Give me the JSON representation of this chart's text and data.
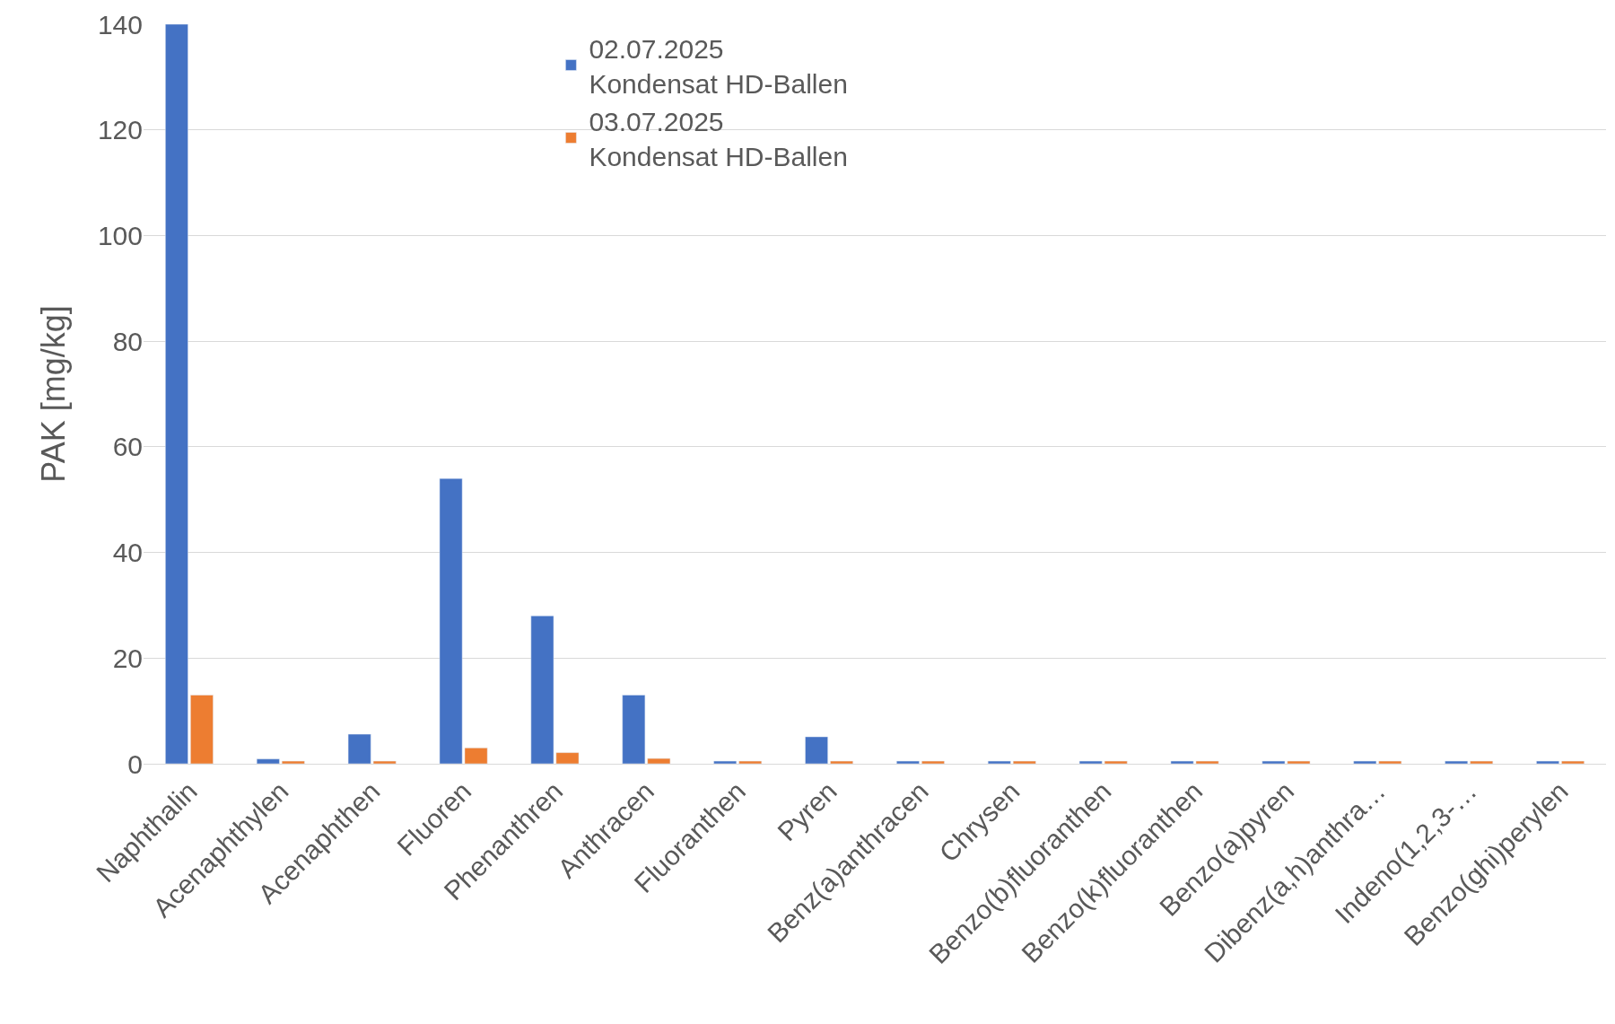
{
  "chart_data": {
    "type": "bar",
    "ylabel": "PAK [mg/kg]",
    "categories": [
      "Naphthalin",
      "Acenaphthylen",
      "Acenaphthen",
      "Fluoren",
      "Phenanthren",
      "Anthracen",
      "Fluoranthen",
      "Pyren",
      "Benz(a)anthracen",
      "Chrysen",
      "Benzo(b)fluoranthen",
      "Benzo(k)fluoranthen",
      "Benzo(a)pyren",
      "Dibenz(a,h)anthra…",
      "Indeno(1,2,3-…",
      "Benzo(ghi)perylen"
    ],
    "series": [
      {
        "name": "02.07.2025\nKondensat HD-Ballen",
        "color": "#4472c4",
        "values": [
          140,
          0.9,
          5.6,
          54,
          28,
          13,
          0.5,
          5.1,
          0.5,
          0.5,
          0.5,
          0.5,
          0.5,
          0.5,
          0.5,
          0.5
        ]
      },
      {
        "name": "03.07.2025\nKondensat HD-Ballen",
        "color": "#ed7d31",
        "values": [
          13,
          0.5,
          0.5,
          3,
          2.1,
          1,
          0.5,
          0.5,
          0.5,
          0.5,
          0.5,
          0.5,
          0.5,
          0.5,
          0.5,
          0.5
        ]
      }
    ],
    "ylim": [
      0,
      140
    ],
    "yticks": [
      0,
      20,
      40,
      60,
      80,
      100,
      120,
      140
    ],
    "grid": "y",
    "legend": "top"
  }
}
